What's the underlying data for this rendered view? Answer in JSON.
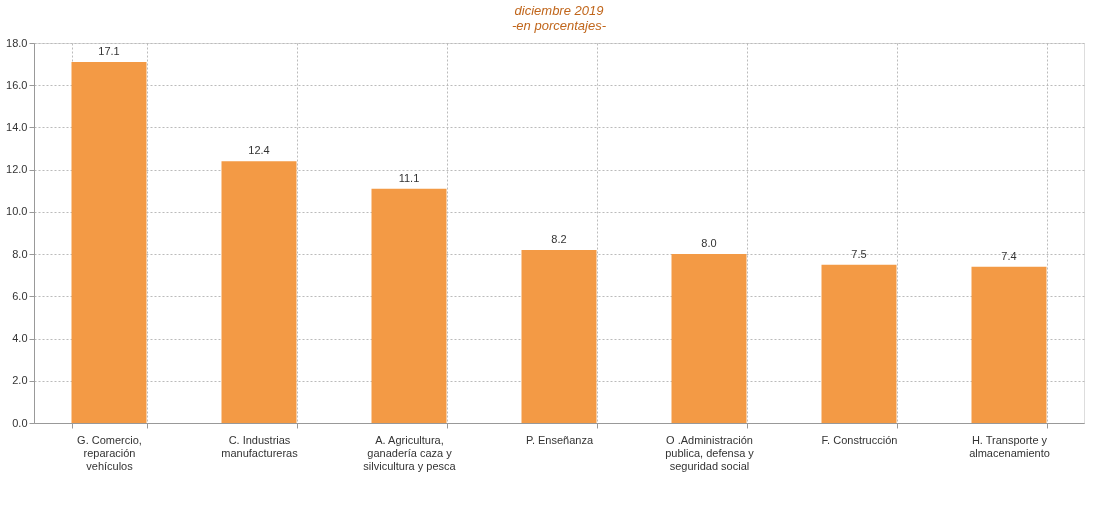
{
  "chart_data": {
    "type": "bar",
    "title": "diciembre 2019",
    "subtitle": "-en porcentajes-",
    "categories": [
      "G. Comercio,\nreparación\nvehículos",
      "C. Industrias\nmanufactureras",
      "A. Agricultura,\nganadería caza y\nsilvicultura y pesca",
      "P. Enseñanza",
      "O .Administración\npublica, defensa y\nseguridad social",
      "F. Construcción",
      "H. Transporte y\nalmacenamiento"
    ],
    "values": [
      17.1,
      12.4,
      11.1,
      8.2,
      8.0,
      7.5,
      7.4
    ],
    "color": "#f39a45",
    "value_labels": [
      "17.1",
      "12.4",
      "11.1",
      "8.2",
      "8.0",
      "7.5",
      "7.4"
    ],
    "ylim": [
      0,
      18
    ],
    "yticks": [
      {
        "value": 0,
        "label": "0.0"
      },
      {
        "value": 2,
        "label": "2.0"
      },
      {
        "value": 4,
        "label": "4.0"
      },
      {
        "value": 6,
        "label": "6.0"
      },
      {
        "value": 8,
        "label": "8.0"
      },
      {
        "value": 10,
        "label": "10.0"
      },
      {
        "value": 12,
        "label": "12.0"
      },
      {
        "value": 14,
        "label": "14.0"
      },
      {
        "value": 16,
        "label": "16.0"
      },
      {
        "value": 18,
        "label": "18.0"
      }
    ],
    "grid": true
  }
}
